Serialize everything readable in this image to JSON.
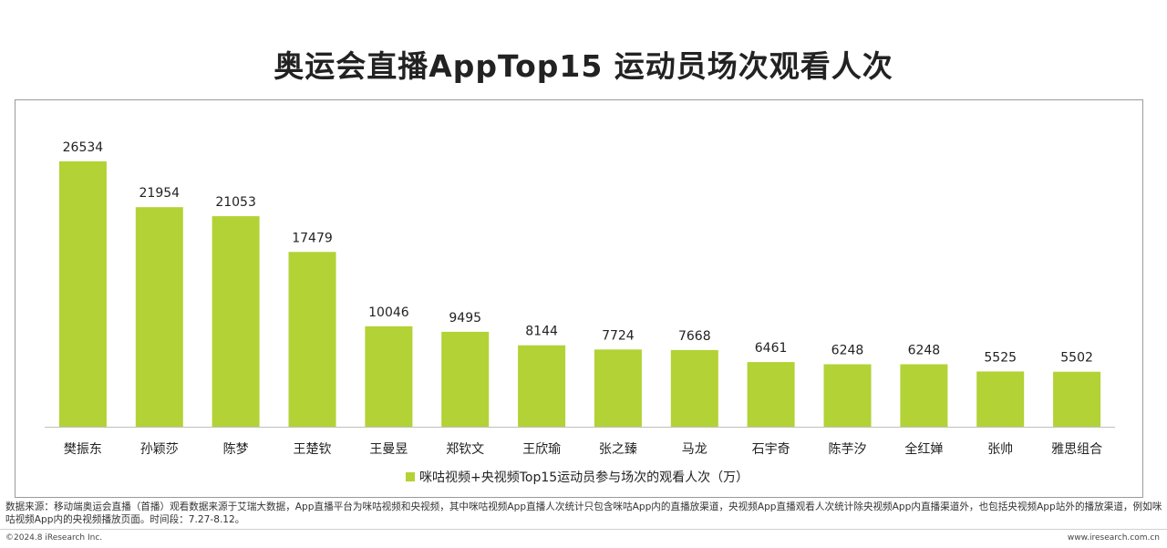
{
  "title": "奥运会直播AppTop15 运动员场次观看人次",
  "chart_data": {
    "type": "bar",
    "categories": [
      "樊振东",
      "孙颖莎",
      "陈梦",
      "王楚钦",
      "王曼昱",
      "郑钦文",
      "王欣瑜",
      "张之臻",
      "马龙",
      "石宇奇",
      "陈芋汐",
      "全红婵",
      "张帅",
      "雅思组合"
    ],
    "series": [
      {
        "name": "咪咕视频+央视频Top15运动员参与场次的观看人次（万）",
        "values": [
          26534,
          21954,
          21053,
          17479,
          10046,
          9495,
          8144,
          7724,
          7668,
          6461,
          6248,
          6248,
          5525,
          5502
        ]
      }
    ],
    "ylim": [
      0,
      30000
    ],
    "legend_position": "bottom",
    "grid": false,
    "bar_color": "#b2d235"
  },
  "footnote": "数据来源：移动端奥运会直播（首播）观看数据来源于艾瑞大数据，App直播平台为咪咕视频和央视频，其中咪咕视频App直播人次统计只包含咪咕App内的直播放渠道，央视频App直播观看人次统计除央视频App内直播渠道外，也包括央视频App站外的播放渠道，例如咪咕视频App内的央视频播放页面。时间段：7.27-8.12。",
  "footer": {
    "copyright": "©2024.8 iResearch Inc.",
    "website": "www.iresearch.com.cn"
  }
}
